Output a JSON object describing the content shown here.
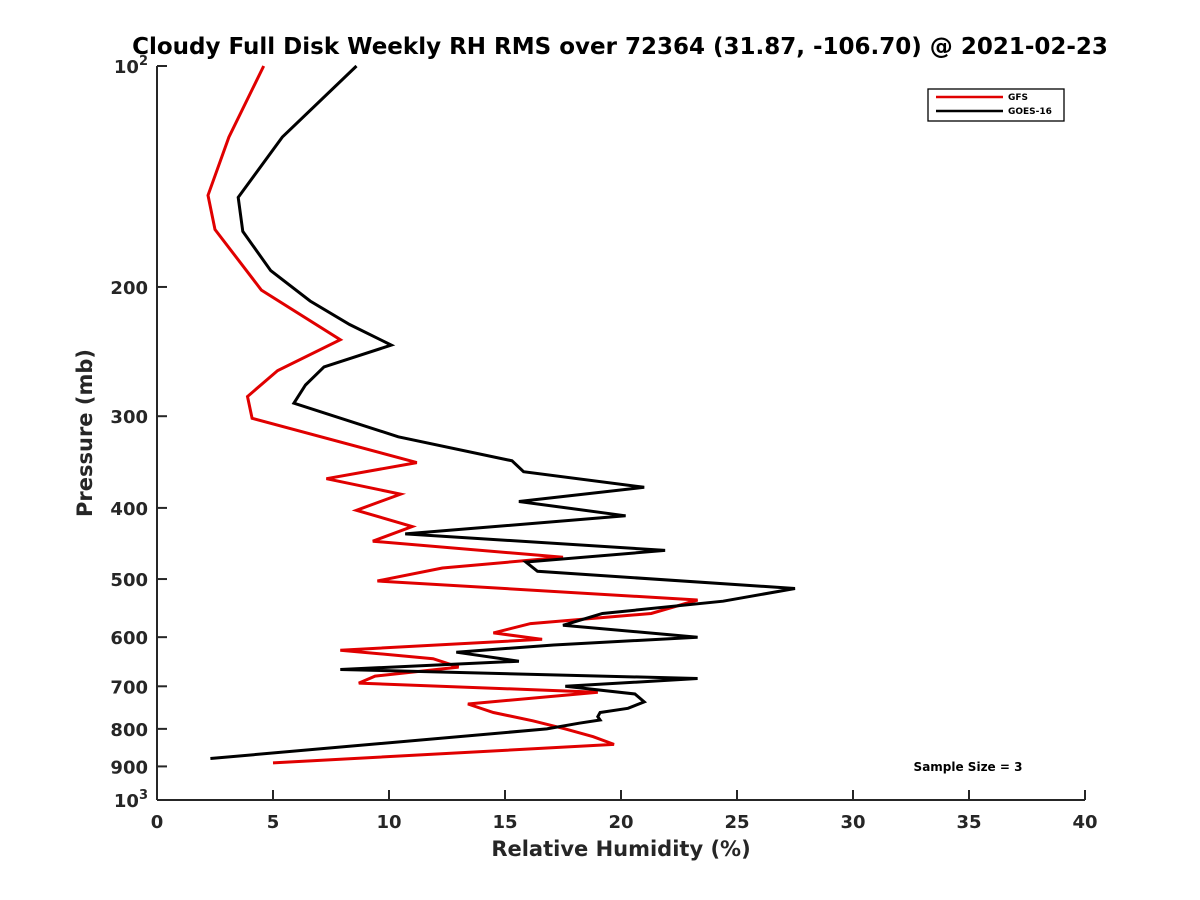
{
  "chart_data": {
    "type": "line",
    "title": "Cloudy Full Disk Weekly RH RMS over 72364 (31.87, -106.70) @ 2021-02-23",
    "xlabel": "Relative Humidity (%)",
    "ylabel": "Pressure (mb)",
    "xlim": [
      0,
      40
    ],
    "ylim": [
      100,
      1000
    ],
    "yscale": "log",
    "y_reversed": true,
    "grid": false,
    "legend_position": "top-right",
    "x_ticks": [
      0,
      5,
      10,
      15,
      20,
      25,
      30,
      35,
      40
    ],
    "x_tick_labels": [
      "0",
      "5",
      "10",
      "15",
      "20",
      "25",
      "30",
      "35",
      "40"
    ],
    "y_ticks": [
      100,
      200,
      300,
      400,
      500,
      600,
      700,
      800,
      900,
      1000
    ],
    "y_tick_labels": [
      {
        "base": "10",
        "sup": "2"
      },
      {
        "base": "200",
        "sup": ""
      },
      {
        "base": "300",
        "sup": ""
      },
      {
        "base": "400",
        "sup": ""
      },
      {
        "base": "500",
        "sup": ""
      },
      {
        "base": "600",
        "sup": ""
      },
      {
        "base": "700",
        "sup": ""
      },
      {
        "base": "800",
        "sup": ""
      },
      {
        "base": "900",
        "sup": ""
      },
      {
        "base": "10",
        "sup": "3"
      }
    ],
    "annotation": "Sample Size = 3",
    "series": [
      {
        "name": "GFS",
        "color": "#e00000",
        "x": [
          4.6,
          3.1,
          2.2,
          2.5,
          4.5,
          7.9,
          5.2,
          3.9,
          4.1,
          11.2,
          7.3,
          10.5,
          8.6,
          11.0,
          9.3,
          17.5,
          12.3,
          9.5,
          23.3,
          21.3,
          16.1,
          14.5,
          16.6,
          7.9,
          11.9,
          13.0,
          9.4,
          8.7,
          19.0,
          13.4,
          14.5,
          16.2,
          17.6,
          18.8,
          19.7,
          5.0
        ],
        "y": [
          100,
          125,
          150,
          167,
          202,
          236,
          260,
          282,
          302,
          347,
          365,
          383,
          403,
          424,
          444,
          467,
          483,
          503,
          534,
          557,
          575,
          592,
          604,
          625,
          642,
          659,
          678,
          693,
          713,
          740,
          760,
          780,
          800,
          820,
          840,
          890
        ]
      },
      {
        "name": "GOES-16",
        "color": "#000000",
        "x": [
          8.6,
          5.4,
          3.5,
          3.7,
          4.9,
          6.6,
          8.3,
          10.1,
          7.2,
          6.4,
          5.9,
          10.4,
          15.3,
          15.8,
          21.0,
          15.6,
          20.2,
          10.7,
          21.9,
          15.9,
          16.4,
          27.5,
          24.4,
          19.2,
          17.5,
          23.3,
          17.1,
          12.9,
          15.6,
          7.9,
          23.3,
          17.6,
          20.6,
          21.0,
          20.3,
          19.1,
          19.0,
          19.1,
          18.2,
          16.8,
          2.3
        ],
        "y": [
          100,
          125,
          151,
          168,
          190,
          209,
          225,
          240,
          257,
          272,
          288,
          320,
          345,
          357,
          375,
          392,
          410,
          434,
          457,
          474,
          488,
          515,
          536,
          557,
          578,
          600,
          615,
          629,
          647,
          664,
          683,
          700,
          717,
          735,
          750,
          760,
          770,
          778,
          786,
          800,
          878
        ]
      }
    ]
  }
}
